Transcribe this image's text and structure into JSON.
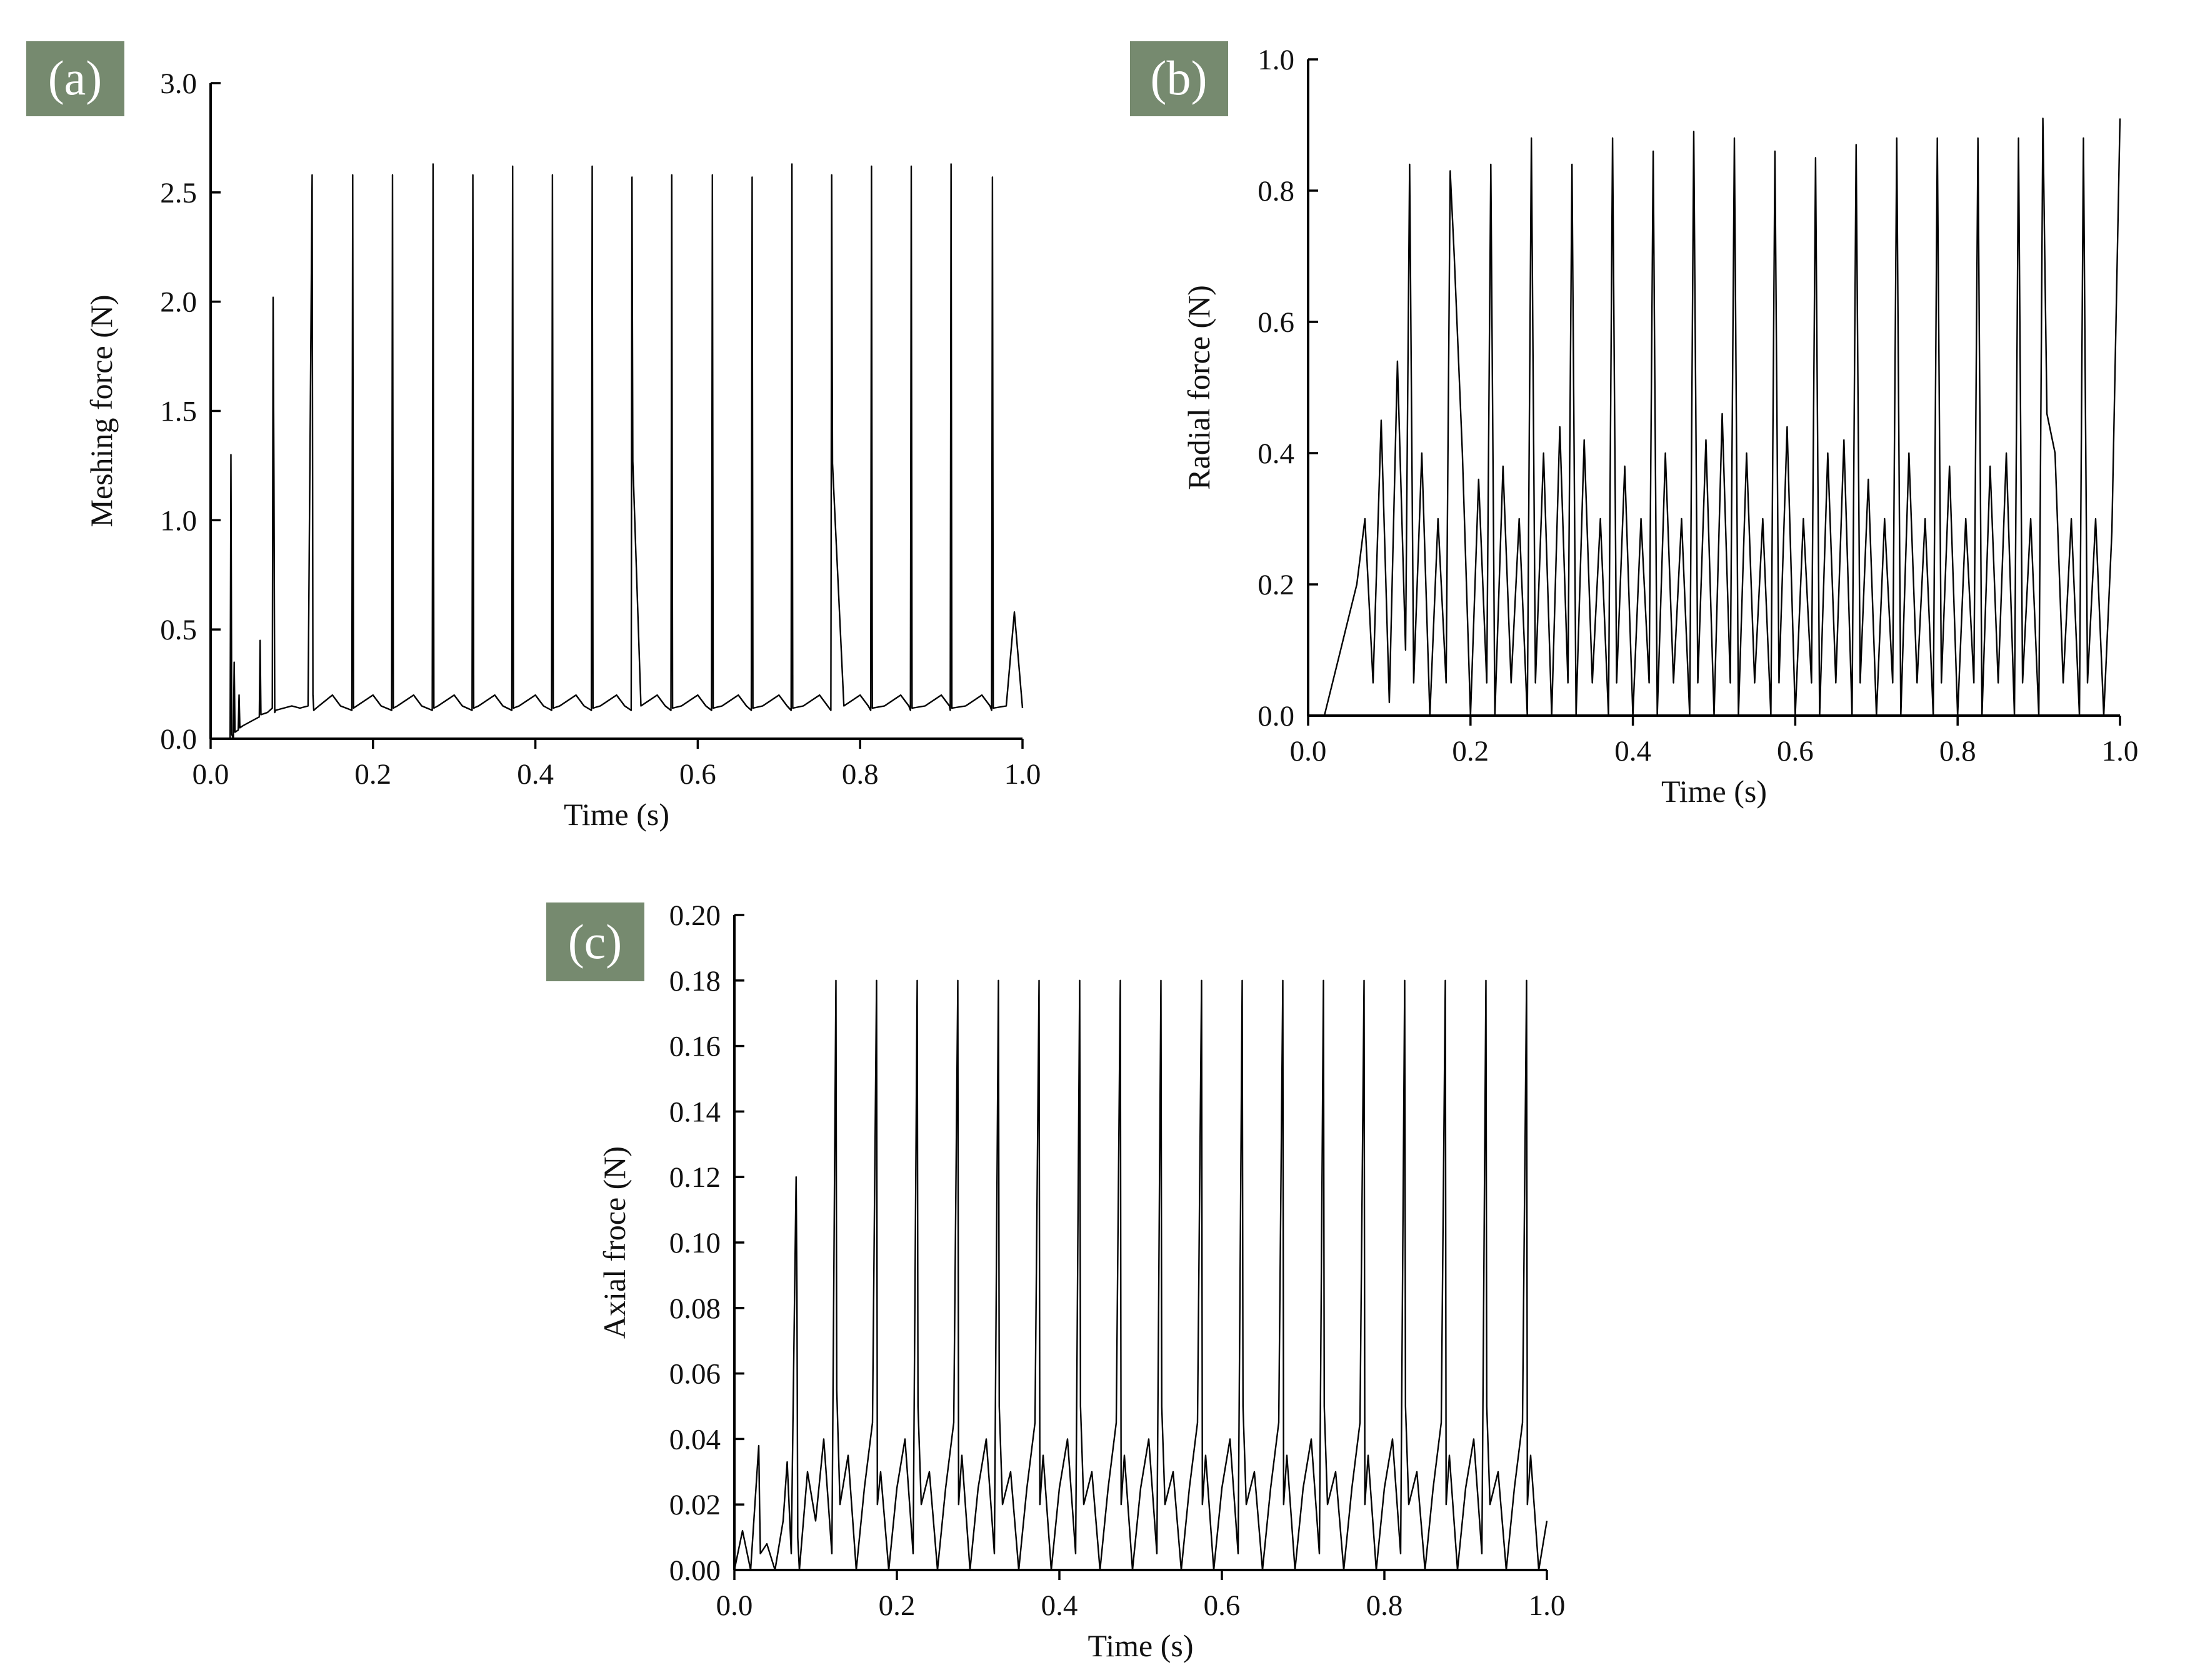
{
  "chart_data": [
    {
      "panel_label": "(a)",
      "type": "line",
      "xlabel": "Time (s)",
      "ylabel": "Meshing force (N)",
      "xlim": [
        0.0,
        1.0
      ],
      "ylim": [
        0.0,
        3.0
      ],
      "x_ticks": [
        "0.0",
        "0.2",
        "0.4",
        "0.6",
        "0.8",
        "1.0"
      ],
      "y_ticks": [
        "0.0",
        "0.5",
        "1.0",
        "1.5",
        "2.0",
        "2.5",
        "3.0"
      ],
      "grid": false,
      "series": [
        {
          "x": [
            0.0,
            0.024,
            0.025,
            0.026,
            0.028,
            0.029,
            0.03,
            0.034,
            0.035,
            0.036,
            0.04,
            0.05,
            0.06,
            0.061,
            0.062,
            0.07,
            0.076,
            0.077,
            0.078,
            0.079,
            0.08,
            0.09,
            0.1,
            0.11,
            0.12,
            0.125,
            0.126,
            0.127,
            0.13,
            0.15,
            0.16,
            0.174,
            0.175,
            0.176,
            0.18,
            0.2,
            0.21,
            0.223,
            0.224,
            0.225,
            0.23,
            0.25,
            0.26,
            0.273,
            0.274,
            0.275,
            0.28,
            0.3,
            0.31,
            0.322,
            0.323,
            0.324,
            0.33,
            0.35,
            0.36,
            0.371,
            0.372,
            0.373,
            0.38,
            0.4,
            0.41,
            0.42,
            0.421,
            0.422,
            0.43,
            0.45,
            0.46,
            0.469,
            0.47,
            0.471,
            0.48,
            0.5,
            0.51,
            0.518,
            0.519,
            0.52,
            0.53,
            0.55,
            0.56,
            0.567,
            0.568,
            0.569,
            0.58,
            0.6,
            0.61,
            0.617,
            0.618,
            0.619,
            0.63,
            0.65,
            0.66,
            0.666,
            0.667,
            0.668,
            0.68,
            0.7,
            0.71,
            0.715,
            0.716,
            0.717,
            0.73,
            0.75,
            0.76,
            0.764,
            0.765,
            0.766,
            0.78,
            0.8,
            0.81,
            0.813,
            0.814,
            0.815,
            0.83,
            0.85,
            0.86,
            0.862,
            0.863,
            0.864,
            0.88,
            0.9,
            0.91,
            0.911,
            0.912,
            0.913,
            0.93,
            0.95,
            0.96,
            0.962,
            0.963,
            0.964,
            0.98,
            0.99,
            1.0
          ],
          "y": [
            0.0,
            0.0,
            1.3,
            0.02,
            0.0,
            0.35,
            0.03,
            0.04,
            0.2,
            0.05,
            0.06,
            0.08,
            0.1,
            0.45,
            0.11,
            0.12,
            0.14,
            2.02,
            1.2,
            0.12,
            0.13,
            0.14,
            0.15,
            0.14,
            0.15,
            2.58,
            0.2,
            0.13,
            0.14,
            0.2,
            0.15,
            0.13,
            2.58,
            0.14,
            0.15,
            0.2,
            0.15,
            0.13,
            2.58,
            0.14,
            0.15,
            0.2,
            0.15,
            0.13,
            2.63,
            0.14,
            0.15,
            0.2,
            0.15,
            0.13,
            2.58,
            0.14,
            0.15,
            0.2,
            0.15,
            0.13,
            2.62,
            0.14,
            0.15,
            0.2,
            0.15,
            0.13,
            2.58,
            0.14,
            0.15,
            0.2,
            0.15,
            0.13,
            2.62,
            0.14,
            0.15,
            0.2,
            0.15,
            0.13,
            2.57,
            1.27,
            0.15,
            0.2,
            0.15,
            0.13,
            2.58,
            0.14,
            0.15,
            0.2,
            0.15,
            0.13,
            2.58,
            0.14,
            0.15,
            0.2,
            0.15,
            0.13,
            2.57,
            0.14,
            0.15,
            0.2,
            0.15,
            0.13,
            2.63,
            0.14,
            0.15,
            0.2,
            0.15,
            0.13,
            2.58,
            1.26,
            0.15,
            0.2,
            0.15,
            0.13,
            2.62,
            0.14,
            0.15,
            0.2,
            0.15,
            0.13,
            2.62,
            0.14,
            0.15,
            0.2,
            0.15,
            0.13,
            2.63,
            0.14,
            0.15,
            0.2,
            0.15,
            0.13,
            2.57,
            0.14,
            0.15,
            0.58,
            0.14
          ]
        }
      ]
    },
    {
      "panel_label": "(b)",
      "type": "line",
      "xlabel": "Time (s)",
      "ylabel": "Radial force (N)",
      "xlim": [
        0.0,
        1.0
      ],
      "ylim": [
        0.0,
        1.0
      ],
      "x_ticks": [
        "0.0",
        "0.2",
        "0.4",
        "0.6",
        "0.8",
        "1.0"
      ],
      "y_ticks": [
        "0.0",
        "0.2",
        "0.4",
        "0.6",
        "0.8",
        "1.0"
      ],
      "grid": false,
      "series": [
        {
          "x": [
            0.0,
            0.02,
            0.03,
            0.04,
            0.05,
            0.06,
            0.07,
            0.08,
            0.09,
            0.1,
            0.11,
            0.12,
            0.125,
            0.13,
            0.14,
            0.15,
            0.16,
            0.17,
            0.175,
            0.18,
            0.19,
            0.2,
            0.21,
            0.22,
            0.225,
            0.23,
            0.24,
            0.25,
            0.26,
            0.27,
            0.275,
            0.28,
            0.29,
            0.3,
            0.31,
            0.32,
            0.325,
            0.33,
            0.34,
            0.35,
            0.36,
            0.37,
            0.375,
            0.38,
            0.39,
            0.4,
            0.41,
            0.42,
            0.425,
            0.43,
            0.44,
            0.45,
            0.46,
            0.47,
            0.475,
            0.48,
            0.49,
            0.5,
            0.51,
            0.52,
            0.525,
            0.53,
            0.54,
            0.55,
            0.56,
            0.57,
            0.575,
            0.58,
            0.59,
            0.6,
            0.61,
            0.62,
            0.625,
            0.63,
            0.64,
            0.65,
            0.66,
            0.67,
            0.675,
            0.68,
            0.69,
            0.7,
            0.71,
            0.72,
            0.725,
            0.73,
            0.74,
            0.75,
            0.76,
            0.77,
            0.775,
            0.78,
            0.79,
            0.8,
            0.81,
            0.82,
            0.825,
            0.83,
            0.84,
            0.85,
            0.86,
            0.87,
            0.875,
            0.88,
            0.89,
            0.9,
            0.905,
            0.91,
            0.92,
            0.93,
            0.94,
            0.95,
            0.955,
            0.96,
            0.97,
            0.98,
            0.99,
            1.0
          ],
          "y": [
            0.0,
            0.0,
            0.05,
            0.1,
            0.15,
            0.2,
            0.3,
            0.05,
            0.45,
            0.02,
            0.54,
            0.1,
            0.84,
            0.05,
            0.4,
            0.0,
            0.3,
            0.05,
            0.83,
            0.7,
            0.4,
            0.0,
            0.36,
            0.05,
            0.84,
            0.0,
            0.38,
            0.05,
            0.3,
            0.0,
            0.88,
            0.05,
            0.4,
            0.0,
            0.44,
            0.05,
            0.84,
            0.0,
            0.42,
            0.05,
            0.3,
            0.0,
            0.88,
            0.05,
            0.38,
            0.0,
            0.3,
            0.05,
            0.86,
            0.0,
            0.4,
            0.05,
            0.3,
            0.0,
            0.89,
            0.05,
            0.42,
            0.0,
            0.46,
            0.05,
            0.88,
            0.0,
            0.4,
            0.05,
            0.3,
            0.0,
            0.86,
            0.05,
            0.44,
            0.0,
            0.3,
            0.05,
            0.85,
            0.0,
            0.4,
            0.05,
            0.42,
            0.0,
            0.87,
            0.05,
            0.36,
            0.0,
            0.3,
            0.05,
            0.88,
            0.0,
            0.4,
            0.05,
            0.3,
            0.0,
            0.88,
            0.05,
            0.38,
            0.0,
            0.3,
            0.05,
            0.88,
            0.0,
            0.38,
            0.05,
            0.4,
            0.0,
            0.88,
            0.05,
            0.3,
            0.0,
            0.91,
            0.46,
            0.4,
            0.05,
            0.3,
            0.0,
            0.88,
            0.05,
            0.3,
            0.0,
            0.28,
            0.91
          ]
        }
      ]
    },
    {
      "panel_label": "(c)",
      "type": "line",
      "xlabel": "Time (s)",
      "ylabel": "Axial froce (N)",
      "xlim": [
        0.0,
        1.0
      ],
      "ylim": [
        0.0,
        0.2
      ],
      "x_ticks": [
        "0.0",
        "0.2",
        "0.4",
        "0.6",
        "0.8",
        "1.0"
      ],
      "y_ticks": [
        "0.00",
        "0.02",
        "0.04",
        "0.06",
        "0.08",
        "0.10",
        "0.12",
        "0.14",
        "0.16",
        "0.18",
        "0.20"
      ],
      "grid": false,
      "series": [
        {
          "x": [
            0.0,
            0.01,
            0.02,
            0.03,
            0.031,
            0.032,
            0.04,
            0.05,
            0.06,
            0.065,
            0.07,
            0.076,
            0.077,
            0.078,
            0.08,
            0.09,
            0.1,
            0.11,
            0.12,
            0.125,
            0.126,
            0.13,
            0.14,
            0.15,
            0.16,
            0.17,
            0.175,
            0.176,
            0.18,
            0.19,
            0.2,
            0.21,
            0.22,
            0.225,
            0.226,
            0.23,
            0.24,
            0.25,
            0.26,
            0.27,
            0.275,
            0.276,
            0.28,
            0.29,
            0.3,
            0.31,
            0.32,
            0.325,
            0.326,
            0.33,
            0.34,
            0.35,
            0.36,
            0.37,
            0.375,
            0.376,
            0.38,
            0.39,
            0.4,
            0.41,
            0.42,
            0.425,
            0.426,
            0.43,
            0.44,
            0.45,
            0.46,
            0.47,
            0.475,
            0.476,
            0.48,
            0.49,
            0.5,
            0.51,
            0.52,
            0.525,
            0.526,
            0.53,
            0.54,
            0.55,
            0.56,
            0.57,
            0.575,
            0.576,
            0.58,
            0.59,
            0.6,
            0.61,
            0.62,
            0.625,
            0.626,
            0.63,
            0.64,
            0.65,
            0.66,
            0.67,
            0.675,
            0.676,
            0.68,
            0.69,
            0.7,
            0.71,
            0.72,
            0.725,
            0.726,
            0.73,
            0.74,
            0.75,
            0.76,
            0.77,
            0.775,
            0.776,
            0.78,
            0.79,
            0.8,
            0.81,
            0.82,
            0.825,
            0.826,
            0.83,
            0.84,
            0.85,
            0.86,
            0.87,
            0.875,
            0.876,
            0.88,
            0.89,
            0.9,
            0.91,
            0.92,
            0.925,
            0.926,
            0.93,
            0.94,
            0.95,
            0.96,
            0.97,
            0.975,
            0.976,
            0.98,
            0.99,
            1.0
          ],
          "y": [
            0.0,
            0.012,
            0.0,
            0.038,
            0.02,
            0.005,
            0.008,
            0.0,
            0.015,
            0.033,
            0.005,
            0.12,
            0.085,
            0.01,
            0.0,
            0.03,
            0.015,
            0.04,
            0.005,
            0.18,
            0.055,
            0.02,
            0.035,
            0.0,
            0.025,
            0.045,
            0.18,
            0.02,
            0.03,
            0.0,
            0.025,
            0.04,
            0.005,
            0.18,
            0.05,
            0.02,
            0.03,
            0.0,
            0.025,
            0.045,
            0.18,
            0.02,
            0.035,
            0.0,
            0.025,
            0.04,
            0.005,
            0.18,
            0.05,
            0.02,
            0.03,
            0.0,
            0.025,
            0.045,
            0.18,
            0.02,
            0.035,
            0.0,
            0.025,
            0.04,
            0.005,
            0.18,
            0.05,
            0.02,
            0.03,
            0.0,
            0.025,
            0.045,
            0.18,
            0.02,
            0.035,
            0.0,
            0.025,
            0.04,
            0.005,
            0.18,
            0.05,
            0.02,
            0.03,
            0.0,
            0.025,
            0.045,
            0.18,
            0.02,
            0.035,
            0.0,
            0.025,
            0.04,
            0.005,
            0.18,
            0.05,
            0.02,
            0.03,
            0.0,
            0.025,
            0.045,
            0.18,
            0.02,
            0.035,
            0.0,
            0.025,
            0.04,
            0.005,
            0.18,
            0.05,
            0.02,
            0.03,
            0.0,
            0.025,
            0.045,
            0.18,
            0.02,
            0.035,
            0.0,
            0.025,
            0.04,
            0.005,
            0.18,
            0.05,
            0.02,
            0.03,
            0.0,
            0.025,
            0.045,
            0.18,
            0.02,
            0.035,
            0.0,
            0.025,
            0.04,
            0.005,
            0.18,
            0.05,
            0.02,
            0.03,
            0.0,
            0.025,
            0.045,
            0.18,
            0.02,
            0.035,
            0.0,
            0.015
          ]
        }
      ]
    }
  ]
}
